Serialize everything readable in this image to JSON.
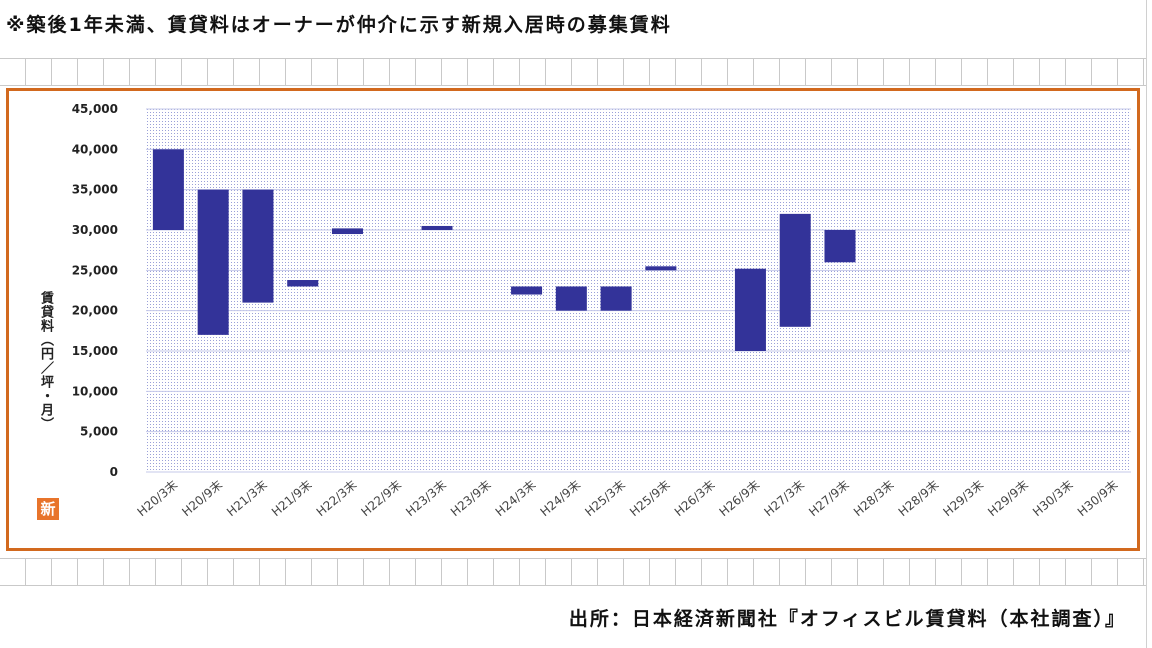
{
  "header": {
    "note": "※築後1年未満、賃貸料はオーナーが仲介に示す新規入居時の募集賃料"
  },
  "badge": {
    "label": "新"
  },
  "footer": {
    "source": "出所：日本経済新聞社『オフィスビル賃貸料（本社調査）』"
  },
  "colors": {
    "bar": "#333399",
    "frame": "#d2691e",
    "plot_dots": "#9aa0d8"
  },
  "chart_data": {
    "type": "bar",
    "subtype": "floating-range",
    "ylabel": "賃貸料（円／坪・月）",
    "ylim": [
      0,
      45000
    ],
    "ytick_values": [
      0,
      5000,
      10000,
      15000,
      20000,
      25000,
      30000,
      35000,
      40000,
      45000
    ],
    "ytick_labels": [
      "0",
      "5,000",
      "10,000",
      "15,000",
      "20,000",
      "25,000",
      "30,000",
      "35,000",
      "40,000",
      "45,000"
    ],
    "categories": [
      "H20/3末",
      "H20/9末",
      "H21/3末",
      "H21/9末",
      "H22/3末",
      "H22/9末",
      "H23/3末",
      "H23/9末",
      "H24/3末",
      "H24/9末",
      "H25/3末",
      "H25/9末",
      "H26/3末",
      "H26/9末",
      "H27/3末",
      "H27/9末",
      "H28/3末",
      "H28/9末",
      "H29/3末",
      "H29/9末",
      "H30/3末",
      "H30/9末"
    ],
    "series": [
      {
        "low": [
          30000,
          17000,
          21000,
          23000,
          29500,
          null,
          30000,
          null,
          22000,
          20000,
          20000,
          25000,
          null,
          15000,
          18000,
          26000,
          null,
          null,
          null,
          null,
          null,
          null
        ],
        "high": [
          40000,
          35000,
          35000,
          23800,
          30200,
          null,
          30500,
          null,
          23000,
          23000,
          23000,
          25500,
          null,
          25200,
          32000,
          30000,
          null,
          null,
          null,
          null,
          null,
          null
        ]
      }
    ],
    "grid": true,
    "legend": "none"
  }
}
